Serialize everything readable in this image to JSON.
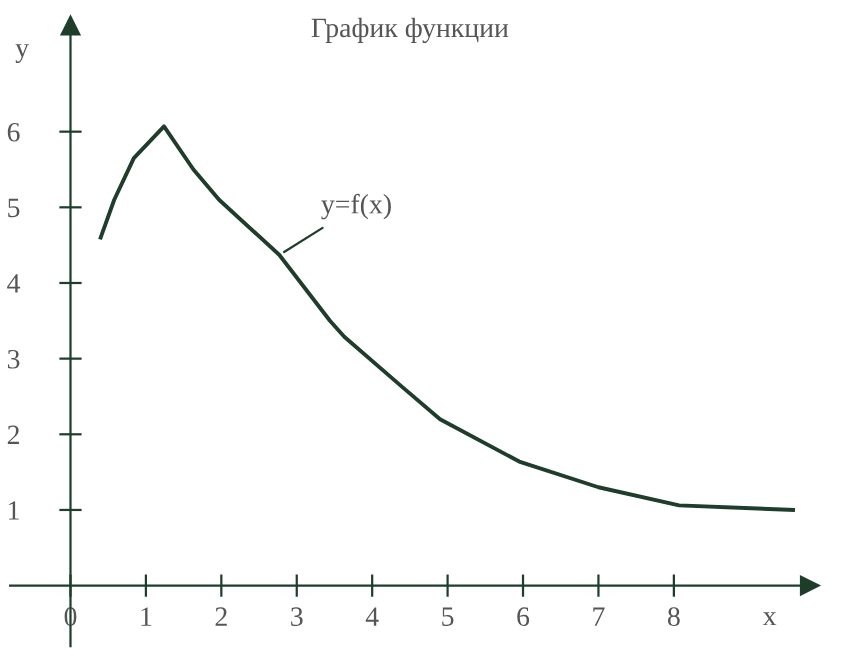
{
  "chart_data": {
    "type": "line",
    "title": "График функции",
    "xlabel": "x",
    "ylabel": "y",
    "x": [
      0.4,
      0.58,
      0.84,
      1.24,
      1.63,
      1.97,
      2.77,
      3.44,
      3.63,
      4.37,
      4.9,
      5.95,
      7.0,
      8.07,
      9.58
    ],
    "series": [
      {
        "color": "#1e3d2a",
        "values": [
          4.6,
          5.1,
          5.65,
          6.07,
          5.5,
          5.1,
          4.37,
          3.5,
          3.29,
          2.65,
          2.2,
          1.64,
          1.3,
          1.06,
          1.0
        ]
      }
    ],
    "xlim": [
      -0.8,
      9.8
    ],
    "ylim": [
      -0.8,
      7.4
    ],
    "xticks": [
      0,
      1,
      2,
      3,
      4,
      5,
      6,
      7,
      8
    ],
    "yticks": [
      1,
      2,
      3,
      4,
      5,
      6
    ],
    "annotations": [
      {
        "text": "y=f(x)",
        "x": 2.77,
        "y": 4.37
      }
    ],
    "grid": false,
    "legend": false,
    "marker": "none",
    "line_style": "solid"
  }
}
